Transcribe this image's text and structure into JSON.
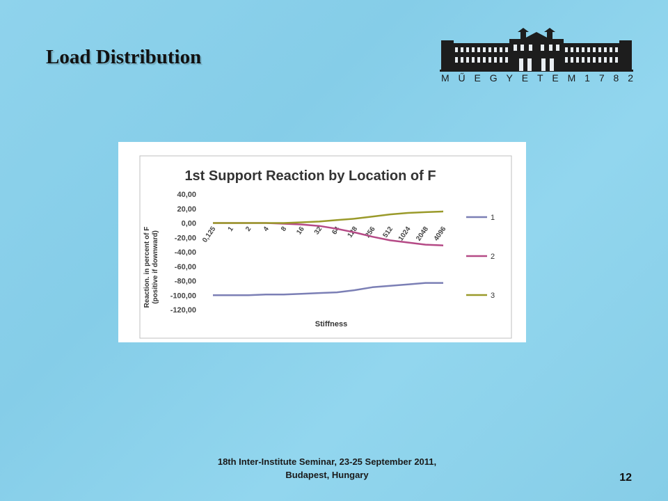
{
  "slide": {
    "title": "Load Distribution",
    "page_number": "12",
    "footer_line1": "18th Inter-Institute  Seminar, 23-25 September 2011,",
    "footer_line2": "Budapest, Hungary"
  },
  "logo": {
    "text": "MŰEGYETEM 1782",
    "letters": [
      "M",
      "Ű",
      "E",
      "G",
      "Y",
      "E",
      "T",
      "E",
      "M",
      "1",
      "7",
      "8",
      "2"
    ],
    "icon": "university-building-icon"
  },
  "chart_data": {
    "type": "line",
    "title": "1st Support Reaction by Location of F",
    "xlabel": "Stiffness",
    "ylabel_line1": "Reaction. in percent of F",
    "ylabel_line2": "(positive if downward)",
    "categories": [
      "0,125",
      "1",
      "2",
      "4",
      "8",
      "16",
      "32",
      "64",
      "128",
      "256",
      "512",
      "1024",
      "2048",
      "4096"
    ],
    "y_ticks": [
      "40,00",
      "20,00",
      "0,00",
      "-20,00",
      "-40,00",
      "-60,00",
      "-80,00",
      "-100,00",
      "-120,00"
    ],
    "ylim": [
      -120,
      40
    ],
    "legend_position": "right",
    "grid": false,
    "series": [
      {
        "name": "1",
        "color": "#7b7fb5",
        "values": [
          -100,
          -100,
          -100,
          -99,
          -99,
          -98,
          -97,
          -96,
          -93,
          -89,
          -87,
          -85,
          -83,
          -83
        ]
      },
      {
        "name": "2",
        "color": "#b54a86",
        "values": [
          0,
          0,
          0,
          0,
          -1,
          -2,
          -4,
          -8,
          -13,
          -19,
          -24,
          -27,
          -30,
          -31
        ]
      },
      {
        "name": "3",
        "color": "#9a9a2a",
        "values": [
          0,
          0,
          0,
          0,
          0,
          1,
          2,
          4,
          6,
          9,
          12,
          14,
          15,
          16
        ]
      }
    ]
  }
}
